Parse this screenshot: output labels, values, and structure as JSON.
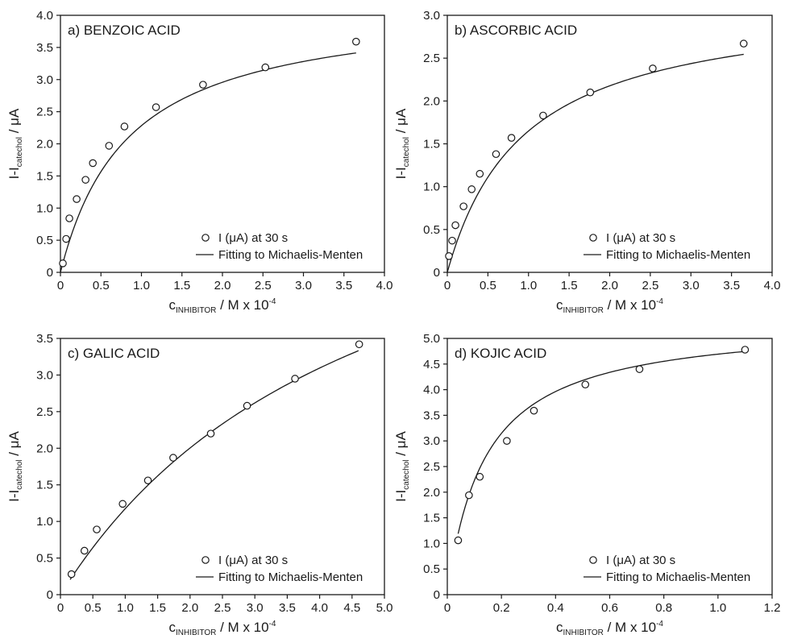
{
  "figure": {
    "panels": [
      "a",
      "b",
      "c",
      "d"
    ]
  },
  "chart_data": [
    {
      "type": "scatter",
      "title": "a) BENZOIC ACID",
      "xlabel": {
        "main": "c",
        "sub": "INHIBITOR",
        "rest": " / M x 10",
        "sup": "-4"
      },
      "ylabel": {
        "main": "I-I",
        "sub": "catechol",
        "rest": " / μA"
      },
      "xlim": [
        0,
        4.0
      ],
      "ylim": [
        0,
        4.0
      ],
      "xticks": [
        "0",
        "0.5",
        "1.0",
        "1.5",
        "2.0",
        "2.5",
        "3.0",
        "3.5",
        "4.0"
      ],
      "yticks": [
        "0",
        "0.5",
        "1.0",
        "1.5",
        "2.0",
        "2.5",
        "3.0",
        "3.5",
        "4.0"
      ],
      "legend": {
        "position": "bottom-right",
        "marker_label": "I (μA) at 30 s",
        "line_label": "Fitting to Michaelis-Menten"
      },
      "series": [
        {
          "name": "I (μA) at 30 s",
          "kind": "markers",
          "x": [
            0.03,
            0.07,
            0.11,
            0.2,
            0.31,
            0.4,
            0.6,
            0.79,
            1.18,
            1.76,
            2.53,
            3.65
          ],
          "y": [
            0.14,
            0.52,
            0.84,
            1.14,
            1.44,
            1.7,
            1.97,
            2.27,
            2.57,
            2.92,
            3.19,
            3.59
          ]
        },
        {
          "name": "Fitting to Michaelis-Menten",
          "kind": "line",
          "vmax": 4.2,
          "km": 0.84,
          "x0": 0.0,
          "x1": 3.65
        }
      ]
    },
    {
      "type": "scatter",
      "title": "b) ASCORBIC ACID",
      "xlabel": {
        "main": "c",
        "sub": "INHIBITOR",
        "rest": " / M x 10",
        "sup": "-4"
      },
      "ylabel": {
        "main": "I-I",
        "sub": "catechol",
        "rest": " / μA"
      },
      "xlim": [
        0,
        4.0
      ],
      "ylim": [
        0,
        3.0
      ],
      "xticks": [
        "0",
        "0.5",
        "1.0",
        "1.5",
        "2.0",
        "2.5",
        "3.0",
        "3.5",
        "4.0"
      ],
      "yticks": [
        "0",
        "0.5",
        "1.0",
        "1.5",
        "2.0",
        "2.5",
        "3.0"
      ],
      "legend": {
        "position": "bottom-right",
        "marker_label": "I (μA) at 30 s",
        "line_label": "Fitting to Michaelis-Menten"
      },
      "series": [
        {
          "name": "I (μA) at 30 s",
          "kind": "markers",
          "x": [
            0.02,
            0.06,
            0.1,
            0.2,
            0.3,
            0.4,
            0.6,
            0.79,
            1.18,
            1.76,
            2.53,
            3.65
          ],
          "y": [
            0.19,
            0.37,
            0.55,
            0.77,
            0.97,
            1.15,
            1.38,
            1.57,
            1.83,
            2.1,
            2.38,
            2.67
          ]
        },
        {
          "name": "Fitting to Michaelis-Menten",
          "kind": "line",
          "vmax": 3.2,
          "km": 0.94,
          "x0": 0.0,
          "x1": 3.65
        }
      ]
    },
    {
      "type": "scatter",
      "title": "c) GALIC ACID",
      "xlabel": {
        "main": "c",
        "sub": "INHIBITOR",
        "rest": " / M x 10",
        "sup": "-4"
      },
      "ylabel": {
        "main": "I-I",
        "sub": "catechol",
        "rest": " / μA"
      },
      "xlim": [
        0,
        5.0
      ],
      "ylim": [
        0,
        3.5
      ],
      "xticks": [
        "0",
        "0.5",
        "1.0",
        "1.5",
        "2.0",
        "2.5",
        "3.0",
        "3.5",
        "4.0",
        "4.5",
        "5.0"
      ],
      "yticks": [
        "0",
        "0.5",
        "1.0",
        "1.5",
        "2.0",
        "2.5",
        "3.0",
        "3.5"
      ],
      "legend": {
        "position": "bottom-right",
        "marker_label": "I (μA) at 30 s",
        "line_label": "Fitting to Michaelis-Menten"
      },
      "series": [
        {
          "name": "I (μA) at 30 s",
          "kind": "markers",
          "x": [
            0.17,
            0.37,
            0.56,
            0.96,
            1.35,
            1.74,
            2.32,
            2.88,
            3.62,
            4.61
          ],
          "y": [
            0.28,
            0.6,
            0.89,
            1.24,
            1.56,
            1.87,
            2.2,
            2.58,
            2.95,
            3.42
          ]
        },
        {
          "name": "Fitting to Michaelis-Menten",
          "kind": "line",
          "vmax": 6.81,
          "km": 4.8,
          "x0": 0.15,
          "x1": 4.6
        }
      ]
    },
    {
      "type": "scatter",
      "title": "d) KOJIC ACID",
      "xlabel": {
        "main": "c",
        "sub": "INHIBITOR",
        "rest": " / M x 10",
        "sup": "-4"
      },
      "ylabel": {
        "main": "I-I",
        "sub": "catechol",
        "rest": " / μA"
      },
      "xlim": [
        0,
        1.2
      ],
      "ylim": [
        0,
        5.0
      ],
      "xticks": [
        "0",
        "0.2",
        "0.4",
        "0.6",
        "0.8",
        "1.0",
        "1.2"
      ],
      "yticks": [
        "0",
        "0.5",
        "1.0",
        "1.5",
        "2.0",
        "2.5",
        "3.0",
        "3.5",
        "4.0",
        "4.5",
        "5.0"
      ],
      "legend": {
        "position": "bottom-right",
        "marker_label": "I (μA) at 30 s",
        "line_label": "Fitting to Michaelis-Menten"
      },
      "series": [
        {
          "name": "I (μA) at 30 s",
          "kind": "markers",
          "x": [
            0.04,
            0.08,
            0.12,
            0.22,
            0.32,
            0.51,
            0.71,
            1.1
          ],
          "y": [
            1.06,
            1.94,
            2.3,
            3.0,
            3.59,
            4.1,
            4.4,
            4.78
          ]
        },
        {
          "name": "Fitting to Michaelis-Menten",
          "kind": "line",
          "vmax": 5.35,
          "km": 0.14,
          "x0": 0.04,
          "x1": 1.1
        }
      ]
    }
  ]
}
